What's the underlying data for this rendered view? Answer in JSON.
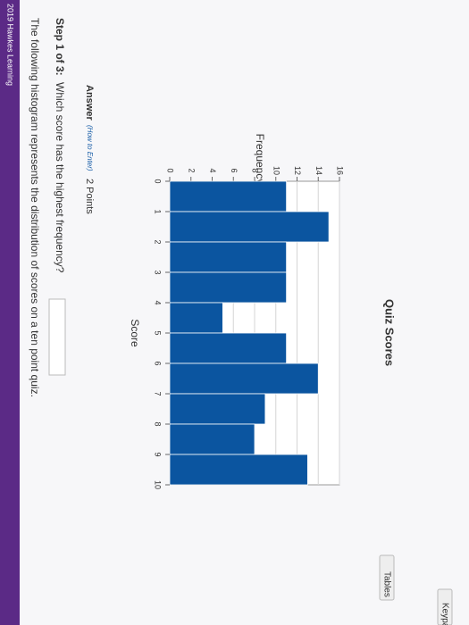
{
  "header": {
    "copyright": "2019 Hawkes Learning"
  },
  "question": {
    "prompt": "The following histogram represents the distribution of scores on a ten point quiz.",
    "step_label": "Step 1 of 3:",
    "step_text": "Which score has the highest frequency?"
  },
  "chart_data": {
    "type": "histogram",
    "title": "Quiz Scores",
    "xlabel": "Score",
    "ylabel": "Frequency",
    "bins": [
      0,
      1,
      2,
      3,
      4,
      5,
      6,
      7,
      8,
      9,
      10
    ],
    "values": [
      11,
      15,
      11,
      11,
      5,
      11,
      14,
      9,
      8,
      13
    ],
    "color": "#0b55a0",
    "ylim": [
      0,
      16
    ],
    "yticks": [
      0,
      2,
      4,
      6,
      8,
      10,
      12,
      14,
      16
    ],
    "grid": true
  },
  "answer": {
    "label": "Answer",
    "how_to": "(How to Enter)",
    "points": "2 Points"
  },
  "buttons": {
    "tables": "Tables",
    "keypad": "Keypad"
  }
}
